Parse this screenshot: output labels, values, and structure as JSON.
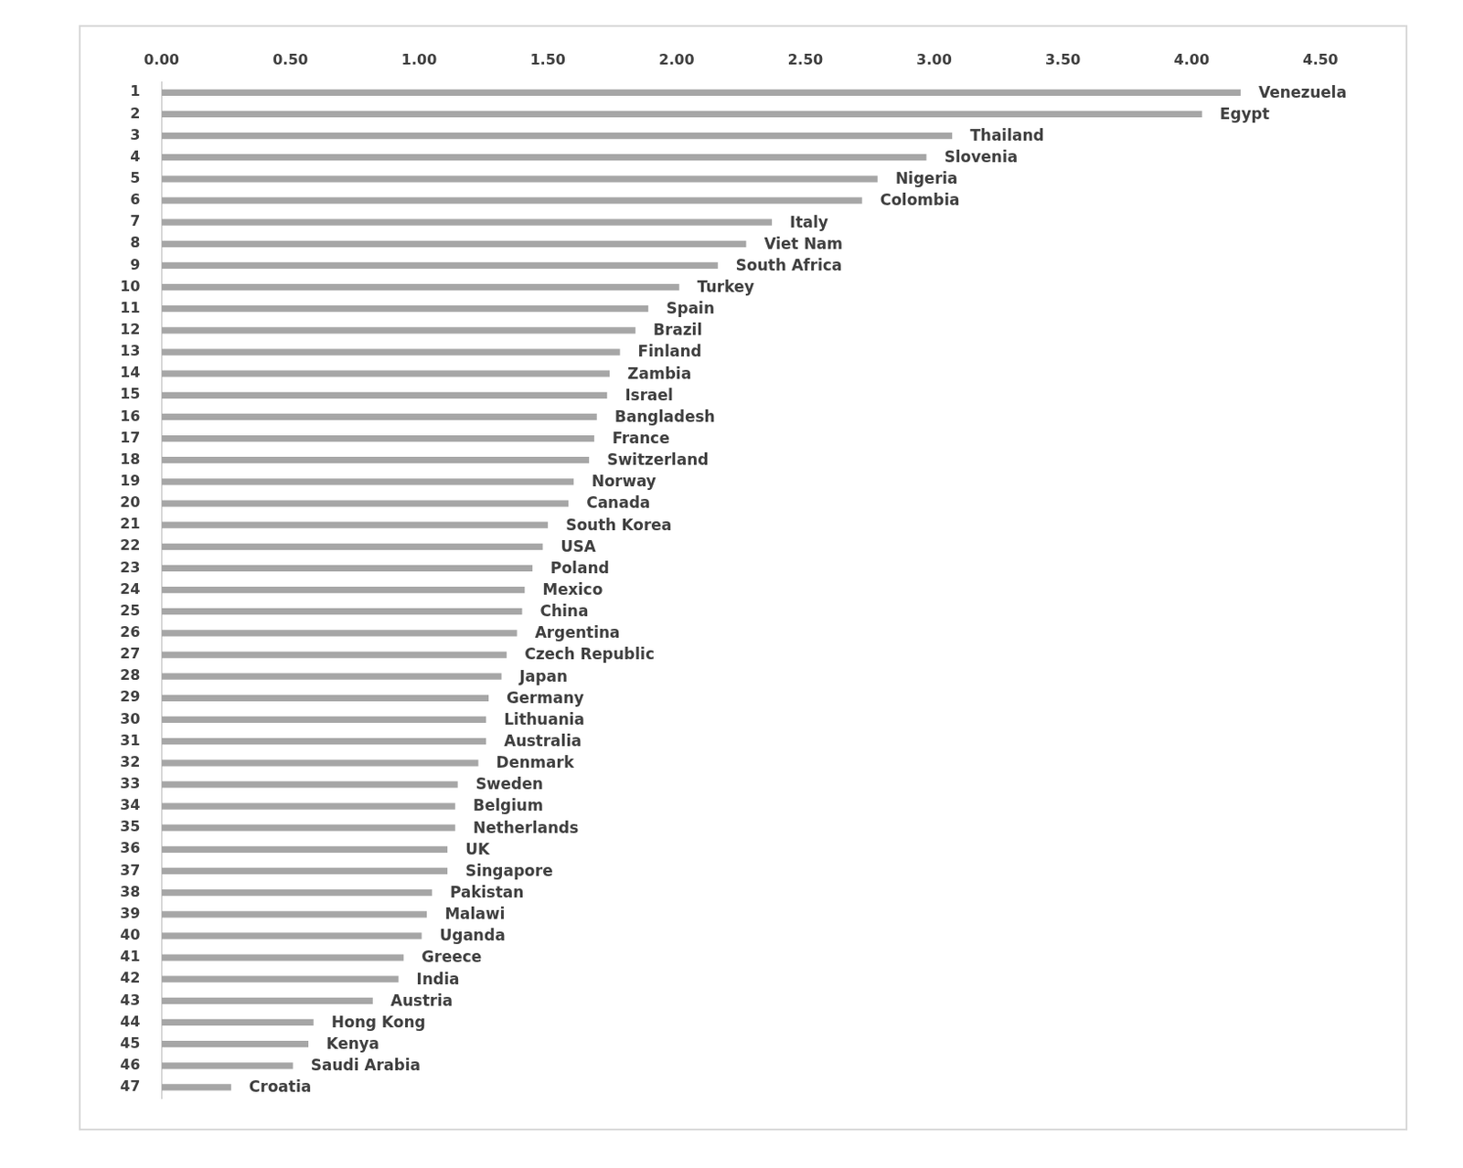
{
  "chart_data": {
    "type": "bar",
    "orientation": "horizontal",
    "grid": false,
    "color": "#a6a6a6",
    "ranks": [
      1,
      2,
      3,
      4,
      5,
      6,
      7,
      8,
      9,
      10,
      11,
      12,
      13,
      14,
      15,
      16,
      17,
      18,
      19,
      20,
      21,
      22,
      23,
      24,
      25,
      26,
      27,
      28,
      29,
      30,
      31,
      32,
      33,
      34,
      35,
      36,
      37,
      38,
      39,
      40,
      41,
      42,
      43,
      44,
      45,
      46,
      47
    ],
    "categories": [
      "Venezuela",
      "Egypt",
      "Thailand",
      "Slovenia",
      "Nigeria",
      "Colombia",
      "Italy",
      "Viet Nam",
      "South Africa",
      "Turkey",
      "Spain",
      "Brazil",
      "Finland",
      "Zambia",
      "Israel",
      "Bangladesh",
      "France",
      "Switzerland",
      "Norway",
      "Canada",
      "South Korea",
      "USA",
      "Poland",
      "Mexico",
      "China",
      "Argentina",
      "Czech Republic",
      "Japan",
      "Germany",
      "Lithuania",
      "Australia",
      "Denmark",
      "Sweden",
      "Belgium",
      "Netherlands",
      "UK",
      "Singapore",
      "Pakistan",
      "Malawi",
      "Uganda",
      "Greece",
      "India",
      "Austria",
      "Hong Kong",
      "Kenya",
      "Saudi Arabia",
      "Croatia"
    ],
    "values": [
      4.19,
      4.04,
      3.07,
      2.97,
      2.78,
      2.72,
      2.37,
      2.27,
      2.16,
      2.01,
      1.89,
      1.84,
      1.78,
      1.74,
      1.73,
      1.69,
      1.68,
      1.66,
      1.6,
      1.58,
      1.5,
      1.48,
      1.44,
      1.41,
      1.4,
      1.38,
      1.34,
      1.32,
      1.27,
      1.26,
      1.26,
      1.23,
      1.15,
      1.14,
      1.14,
      1.11,
      1.11,
      1.05,
      1.03,
      1.01,
      0.94,
      0.92,
      0.82,
      0.59,
      0.57,
      0.51,
      0.27
    ],
    "xlim": [
      0,
      4.5
    ],
    "xticks": [
      {
        "value": 0,
        "label": "0.00"
      },
      {
        "value": 0.5,
        "label": "0.50"
      },
      {
        "value": 1,
        "label": "1.00"
      },
      {
        "value": 1.5,
        "label": "1.50"
      },
      {
        "value": 2,
        "label": "2.00"
      },
      {
        "value": 2.5,
        "label": "2.50"
      },
      {
        "value": 3,
        "label": "3.00"
      },
      {
        "value": 3.5,
        "label": "3.50"
      },
      {
        "value": 4,
        "label": "4.00"
      },
      {
        "value": 4.5,
        "label": "4.50"
      }
    ]
  }
}
